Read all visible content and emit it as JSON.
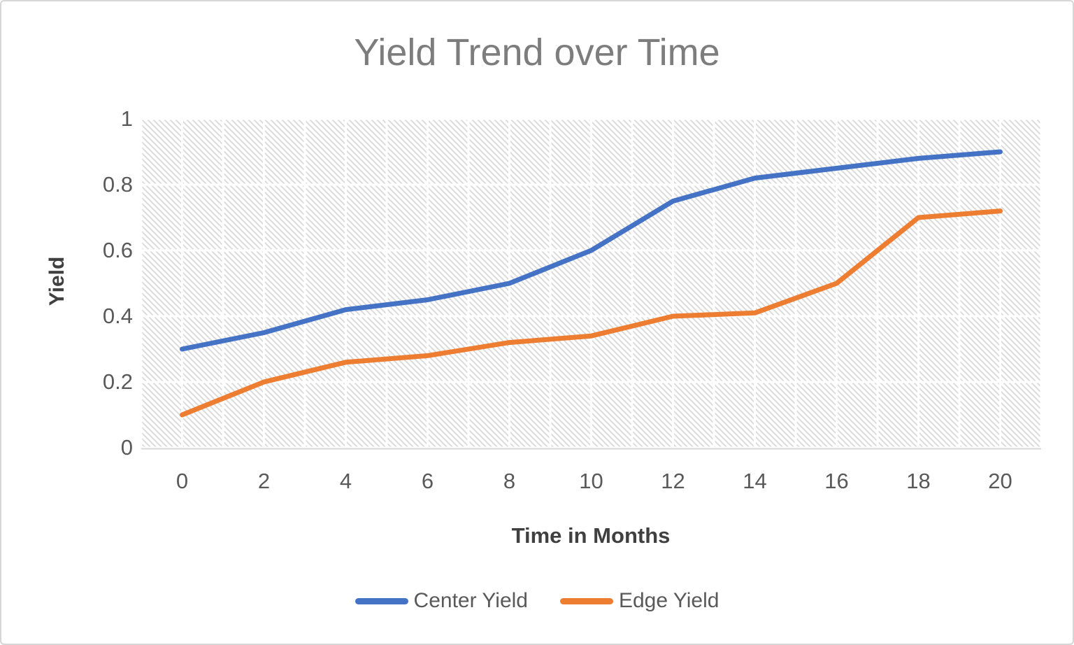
{
  "chart_data": {
    "type": "line",
    "title": "Yield Trend over Time",
    "xlabel": "Time in Months",
    "ylabel": "Yield",
    "categories": [
      "0",
      "2",
      "4",
      "6",
      "8",
      "10",
      "12",
      "14",
      "16",
      "18",
      "20"
    ],
    "series": [
      {
        "name": "Center Yield",
        "color": "#4472C4",
        "values": [
          0.3,
          0.35,
          0.42,
          0.45,
          0.5,
          0.6,
          0.75,
          0.82,
          0.85,
          0.88,
          0.9
        ]
      },
      {
        "name": "Edge Yield",
        "color": "#ED7D31",
        "values": [
          0.1,
          0.2,
          0.26,
          0.28,
          0.32,
          0.34,
          0.4,
          0.41,
          0.5,
          0.7,
          0.72
        ]
      }
    ],
    "ylim": [
      0,
      1
    ],
    "y_ticks": [
      "0",
      "0.2",
      "0.4",
      "0.6",
      "0.8",
      "1"
    ],
    "legend_position": "bottom",
    "grid": "white gridlines: horizontal every 0.2, vertical every 1 month, over diagonal-hatch plot fill",
    "plot_area_fill": "diagonal-hatch"
  },
  "styles": {
    "title_color": "#7d7d7d",
    "tick_color": "#595959",
    "axis_title_color": "#404040",
    "gridline_color": "#ffffff",
    "hatch_color": "#dbdbdb",
    "axis_line_color": "#d9d9d9",
    "canvas_border_color": "#d6d6d6",
    "background_color": "#ffffff"
  }
}
